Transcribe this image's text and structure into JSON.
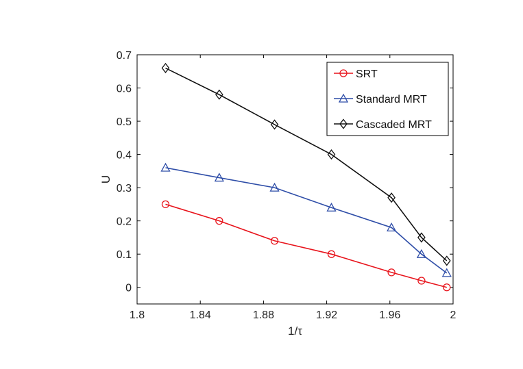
{
  "chart_data": {
    "type": "line",
    "xlabel": "1/τ",
    "ylabel": "U",
    "xlim": [
      1.8,
      2.0
    ],
    "ylim": [
      -0.05,
      0.7
    ],
    "xticks": [
      "1.8",
      "1.84",
      "1.88",
      "1.92",
      "1.96",
      "2"
    ],
    "yticks": [
      "0",
      "0.1",
      "0.2",
      "0.3",
      "0.4",
      "0.5",
      "0.6",
      "0.7"
    ],
    "grid": false,
    "legend_position": "top-right",
    "x": [
      1.818,
      1.852,
      1.887,
      1.923,
      1.961,
      1.98,
      1.996
    ],
    "series": [
      {
        "name": "SRT",
        "marker": "circle",
        "color": "#e8141c",
        "values": [
          0.25,
          0.2,
          0.14,
          0.1,
          0.045,
          0.02,
          0.0
        ]
      },
      {
        "name": "Standard MRT",
        "marker": "triangle",
        "color": "#2f4ea8",
        "values": [
          0.36,
          0.33,
          0.3,
          0.24,
          0.18,
          0.1,
          0.043
        ]
      },
      {
        "name": "Cascaded MRT",
        "marker": "diamond",
        "color": "#111111",
        "values": [
          0.66,
          0.58,
          0.49,
          0.4,
          0.27,
          0.15,
          0.08
        ]
      }
    ]
  }
}
